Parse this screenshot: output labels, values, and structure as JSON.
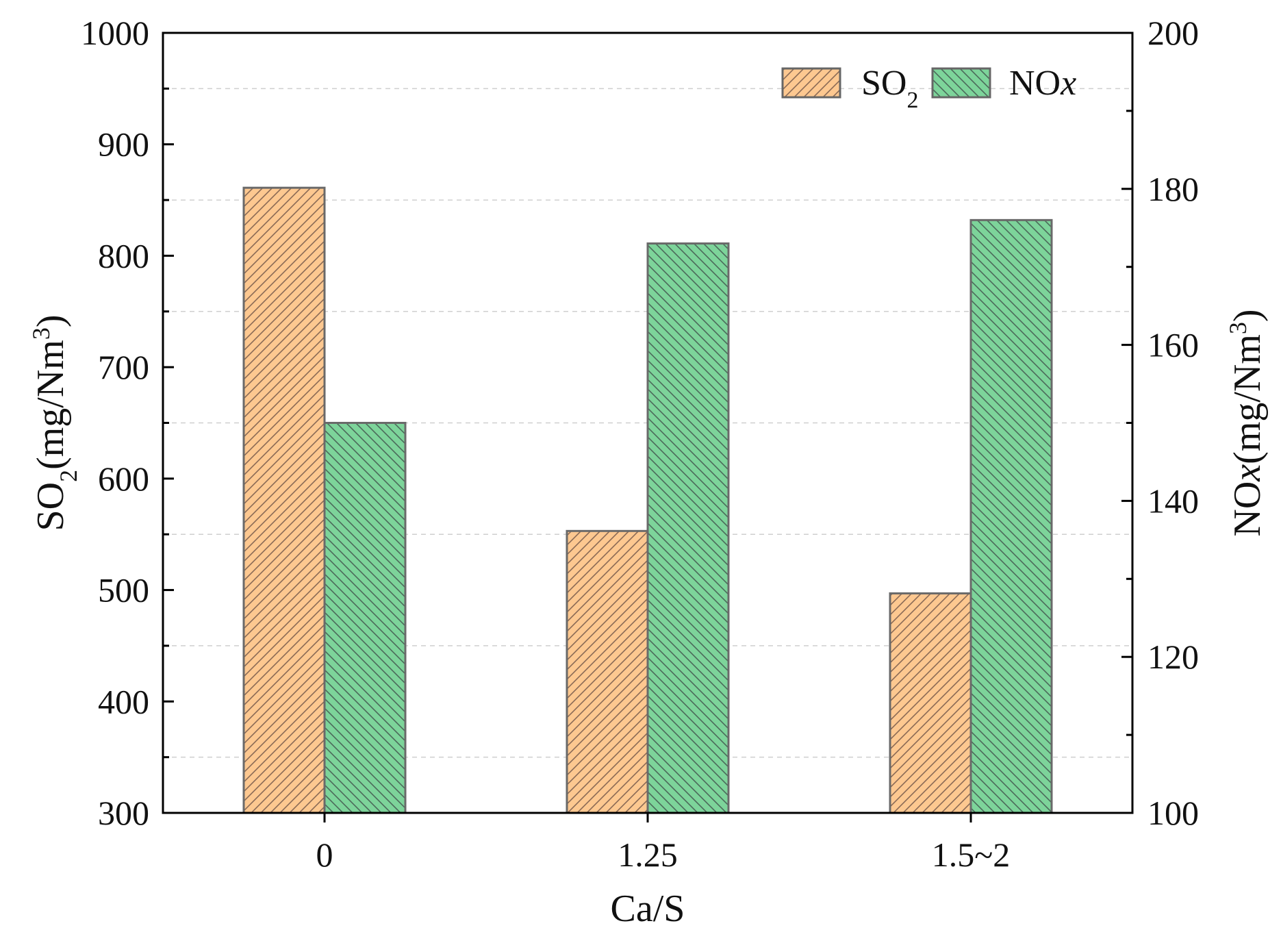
{
  "chart_data": {
    "type": "bar",
    "title": "",
    "xlabel": "Ca/S",
    "categories": [
      "0",
      "1.25",
      "1.5~2"
    ],
    "y_left": {
      "label_main": "SO",
      "label_sub": "2",
      "label_unit": "(mg/Nm",
      "label_sup": "3",
      "label_close": ")",
      "ylim": [
        300,
        1000
      ],
      "ticks": [
        300,
        400,
        500,
        600,
        700,
        800,
        900,
        1000
      ]
    },
    "y_right": {
      "label_main": "NO",
      "label_italic": "x",
      "label_unit": "(mg/Nm",
      "label_sup": "3",
      "label_close": ")",
      "ylim": [
        100,
        200
      ],
      "ticks": [
        100,
        120,
        140,
        160,
        180,
        200
      ]
    },
    "series": [
      {
        "name_main": "SO",
        "name_sub": "2",
        "axis": "left",
        "values": [
          861,
          553,
          497
        ],
        "color": "#fdc890",
        "hatch": "forward"
      },
      {
        "name_main": "NO",
        "name_italic": "x",
        "axis": "right",
        "values": [
          150,
          173,
          176
        ],
        "color": "#7dd49a",
        "hatch": "backward"
      }
    ],
    "grid": "horizontal dashed",
    "legend_position": "top-right"
  }
}
